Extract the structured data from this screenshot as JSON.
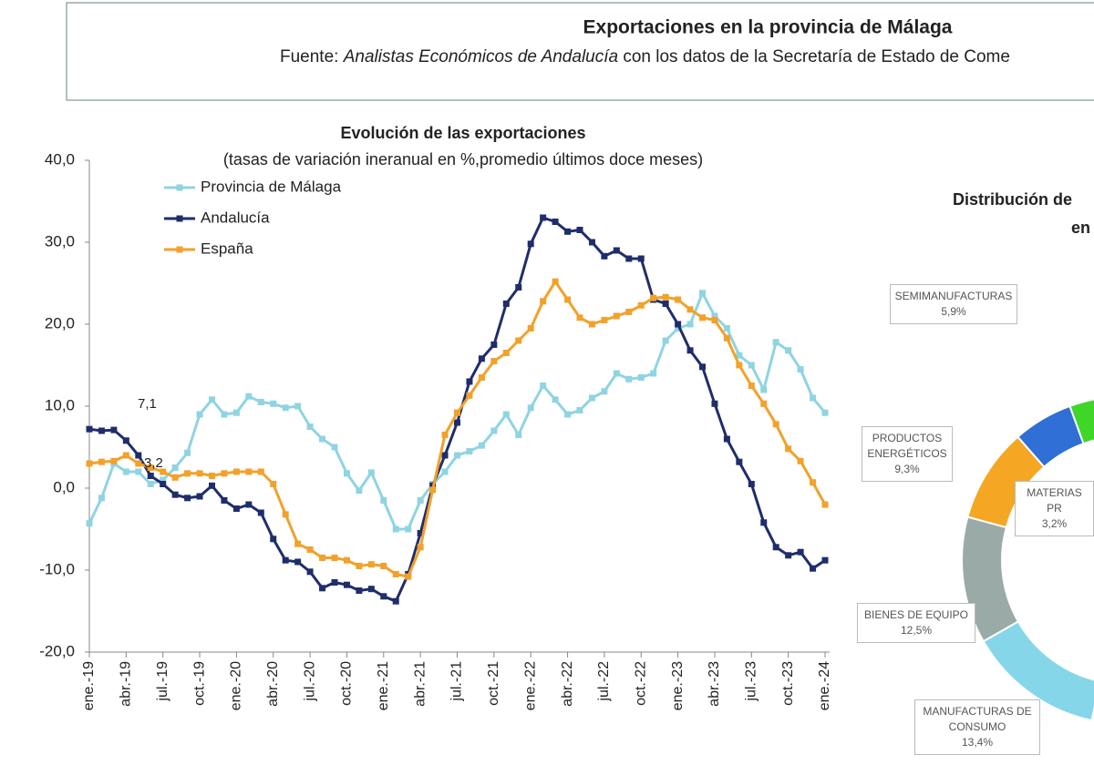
{
  "header": {
    "title": "Exportaciones en la provincia de Málaga",
    "source": [
      "Fuente: ",
      "Analistas Económicos de Andalucía",
      " con los datos de la Secretaría de Estado de Come"
    ]
  },
  "chart_data": [
    {
      "type": "line",
      "title": "Evolución de las exportaciones",
      "subtitle": "(tasas de variación ineranual en %,promedio últimos doce meses)",
      "categories": [
        "ene.-19",
        null,
        null,
        "abr.-19",
        null,
        null,
        "jul.-19",
        null,
        null,
        "oct.-19",
        null,
        null,
        "ene.-20",
        null,
        null,
        "abr.-20",
        null,
        null,
        "jul.-20",
        null,
        null,
        "oct.-20",
        null,
        null,
        "ene.-21",
        null,
        null,
        "abr.-21",
        null,
        null,
        "jul.-21",
        null,
        null,
        "oct.-21",
        null,
        null,
        "ene.-22",
        null,
        null,
        "abr.-22",
        null,
        null,
        "jul.-22",
        null,
        null,
        "oct.-22",
        null,
        null,
        "ene.-23",
        null,
        null,
        "abr.-23",
        null,
        null,
        "jul.-23",
        null,
        null,
        "oct.-23",
        null,
        null,
        "ene.-24"
      ],
      "series": [
        {
          "name": "Provincia de Málaga",
          "color": "#8fd4e2",
          "values": [
            -4.3,
            -1.2,
            3.0,
            2.0,
            2.0,
            0.5,
            1.0,
            2.5,
            4.3,
            9.0,
            10.8,
            9.0,
            9.2,
            11.2,
            10.5,
            10.3,
            9.8,
            10.0,
            7.5,
            6.0,
            5.0,
            1.8,
            -0.3,
            1.9,
            -1.5,
            -5.0,
            -5.0,
            -1.5,
            0.5,
            2.0,
            4.0,
            4.5,
            5.2,
            7.0,
            9.0,
            6.5,
            9.8,
            12.5,
            10.8,
            9.0,
            9.5,
            11.0,
            11.8,
            14.0,
            13.3,
            13.5,
            14.0,
            18.0,
            19.5,
            20.0,
            23.8,
            21.0,
            19.5,
            16.2,
            15.0,
            12.0,
            17.8,
            16.8,
            14.5,
            11.0,
            9.2
          ]
        },
        {
          "name": "Andalucía",
          "color": "#1f2d6b",
          "values": [
            7.2,
            7.0,
            7.1,
            5.8,
            4.0,
            1.5,
            0.5,
            -0.8,
            -1.2,
            -1.0,
            0.3,
            -1.5,
            -2.5,
            -2.0,
            -3.0,
            -6.2,
            -8.8,
            -9.0,
            -10.2,
            -12.2,
            -11.5,
            -11.8,
            -12.5,
            -12.3,
            -13.2,
            -13.8,
            -10.5,
            -5.5,
            0.3,
            4.0,
            8.0,
            13.0,
            15.8,
            17.5,
            22.5,
            24.5,
            29.8,
            33.0,
            32.5,
            31.3,
            31.5,
            30.0,
            28.3,
            29.0,
            28.0,
            28.0,
            23.0,
            22.5,
            20.0,
            16.8,
            14.8,
            10.3,
            6.0,
            3.2,
            0.5,
            -4.2,
            -7.2,
            -8.2,
            -7.8,
            -9.8,
            -8.8
          ]
        },
        {
          "name": "España",
          "color": "#f2a12a",
          "values": [
            3.0,
            3.2,
            3.3,
            4.0,
            3.0,
            2.5,
            2.0,
            1.3,
            1.8,
            1.8,
            1.5,
            1.8,
            2.0,
            2.0,
            2.0,
            0.5,
            -3.2,
            -6.8,
            -7.5,
            -8.5,
            -8.5,
            -8.8,
            -9.5,
            -9.3,
            -9.5,
            -10.5,
            -10.8,
            -7.2,
            -0.2,
            6.5,
            9.2,
            11.3,
            13.5,
            15.5,
            16.5,
            18.0,
            19.5,
            22.8,
            25.2,
            23.0,
            20.8,
            20.0,
            20.5,
            21.0,
            21.5,
            22.3,
            23.2,
            23.3,
            23.0,
            21.8,
            20.8,
            20.5,
            18.3,
            15.0,
            12.5,
            10.3,
            7.8,
            4.8,
            3.3,
            0.7,
            -2.0
          ]
        }
      ],
      "ylim": [
        -20,
        40
      ],
      "yticks": [
        {
          "value": -20,
          "label": "-20,0"
        },
        {
          "value": -10,
          "label": "-10,0"
        },
        {
          "value": 0,
          "label": "0,0"
        },
        {
          "value": 10,
          "label": "10,0"
        },
        {
          "value": 20,
          "label": "20,0"
        },
        {
          "value": 30,
          "label": "30,0"
        },
        {
          "value": 40,
          "label": "40,0"
        }
      ],
      "grid": false,
      "legend": "upper-left",
      "annotations": [
        "7,1",
        "3,2"
      ]
    },
    {
      "type": "donut",
      "title": [
        "Distribución de",
        "en"
      ],
      "categories": [
        "MATERIAS PR",
        "SEMIMANUFACTURAS",
        "PRODUCTOS ENERGÉTICOS",
        "BIENES DE EQUIPO",
        "MANUFACTURAS DE CONSUMO"
      ],
      "values": [
        3.2,
        5.9,
        9.3,
        12.5,
        13.4
      ],
      "value_labels": [
        "3,2%",
        "5,9%",
        "9,3%",
        "12,5%",
        "13,4%"
      ],
      "colors": [
        "#3fd629",
        "#2f6fd6",
        "#f5a623",
        "#9aaaa7",
        "#86d6ea"
      ]
    }
  ]
}
